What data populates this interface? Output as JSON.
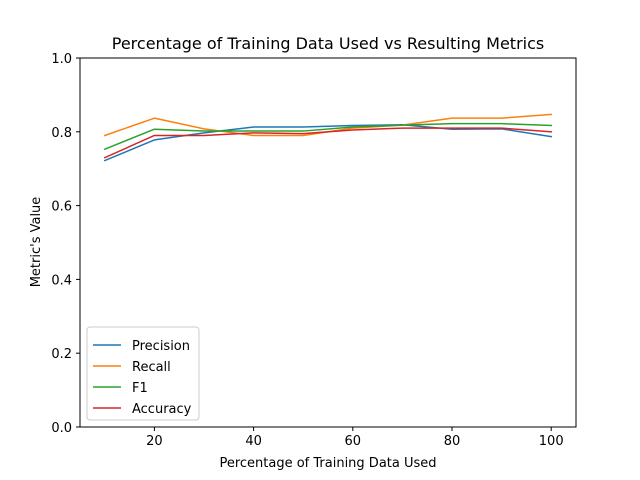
{
  "chart_data": {
    "type": "line",
    "title": "Percentage of Training Data Used vs Resulting Metrics",
    "xlabel": "Percentage of Training Data Used",
    "ylabel": "Metric's Value",
    "x": [
      10,
      20,
      30,
      40,
      50,
      60,
      70,
      80,
      90,
      100
    ],
    "xlim": [
      5,
      105
    ],
    "ylim": [
      0,
      1.0
    ],
    "xticks": [
      20,
      40,
      60,
      80,
      100
    ],
    "yticks": [
      0.0,
      0.2,
      0.4,
      0.6,
      0.8,
      1.0
    ],
    "xtick_labels": [
      "20",
      "40",
      "60",
      "80",
      "100"
    ],
    "ytick_labels": [
      "0.0",
      "0.2",
      "0.4",
      "0.6",
      "0.8",
      "1.0"
    ],
    "grid": false,
    "legend_position": "lower-left",
    "series": [
      {
        "name": "Precision",
        "color": "#1f77b4",
        "values": [
          0.722,
          0.778,
          0.797,
          0.813,
          0.813,
          0.817,
          0.819,
          0.807,
          0.808,
          0.787
        ]
      },
      {
        "name": "Recall",
        "color": "#ff7f0e",
        "values": [
          0.79,
          0.837,
          0.808,
          0.79,
          0.79,
          0.81,
          0.818,
          0.837,
          0.837,
          0.847
        ]
      },
      {
        "name": "F1",
        "color": "#2ca02c",
        "values": [
          0.753,
          0.807,
          0.802,
          0.802,
          0.802,
          0.813,
          0.818,
          0.822,
          0.822,
          0.817
        ]
      },
      {
        "name": "Accuracy",
        "color": "#d62728",
        "values": [
          0.73,
          0.79,
          0.79,
          0.797,
          0.795,
          0.805,
          0.81,
          0.81,
          0.81,
          0.8
        ]
      }
    ]
  }
}
